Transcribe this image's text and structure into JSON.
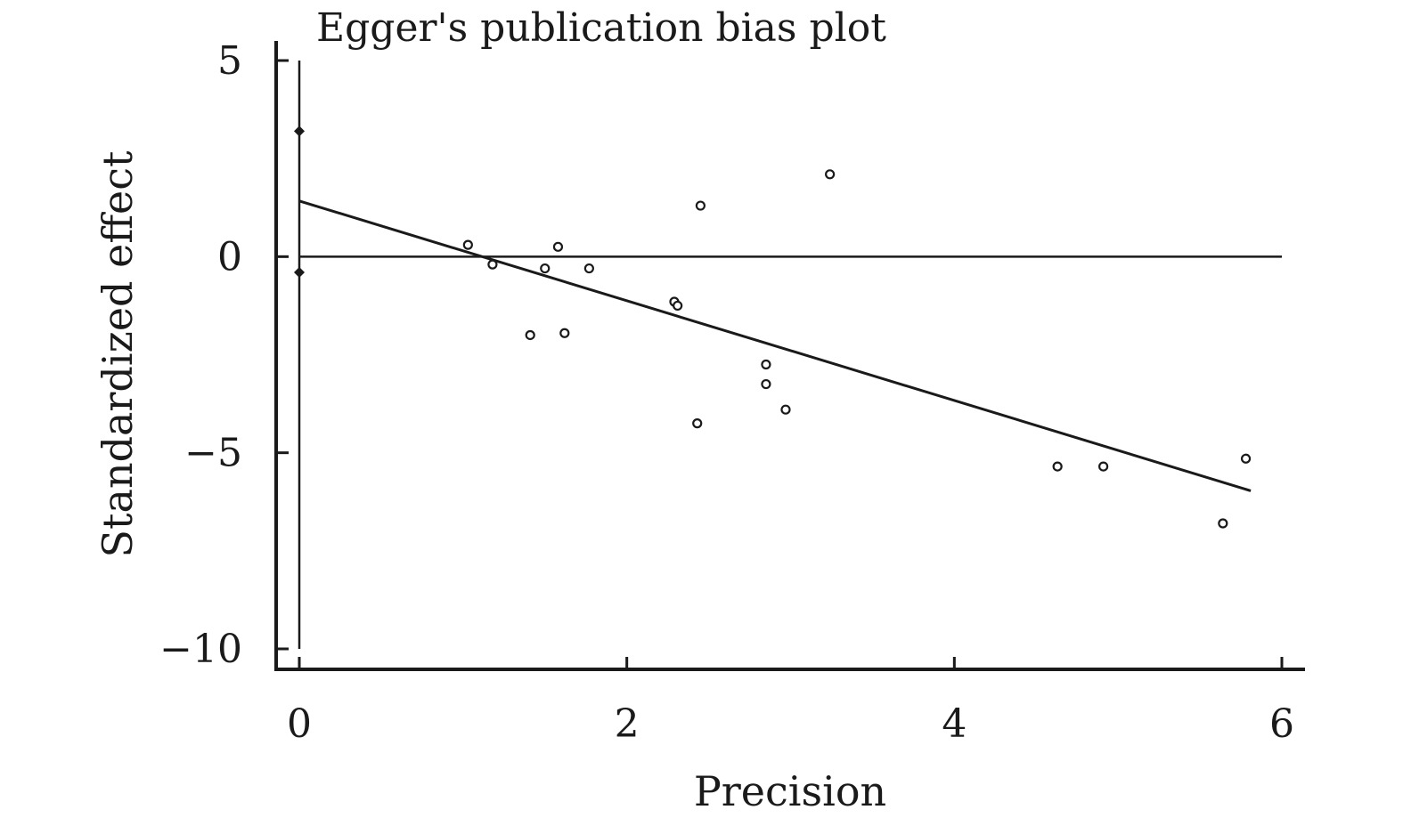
{
  "chart_data": {
    "type": "scatter",
    "title": "Egger's publication bias plot",
    "xlabel": "Precision",
    "ylabel": "Standardized effect",
    "xlim": [
      0,
      6
    ],
    "ylim": [
      -10,
      5
    ],
    "x_ticks": [
      0,
      2,
      4,
      6
    ],
    "x_tick_labels": [
      "0",
      "2",
      "4",
      "6"
    ],
    "y_ticks": [
      5,
      0,
      -5,
      -10
    ],
    "y_tick_labels": [
      "5",
      "0",
      "−5",
      "−10"
    ],
    "grid": false,
    "points": [
      {
        "x": 1.03,
        "y": 0.3
      },
      {
        "x": 1.18,
        "y": -0.2
      },
      {
        "x": 1.41,
        "y": -2.0
      },
      {
        "x": 1.5,
        "y": -0.3
      },
      {
        "x": 1.58,
        "y": 0.25
      },
      {
        "x": 1.62,
        "y": -1.95
      },
      {
        "x": 1.77,
        "y": -0.3
      },
      {
        "x": 2.29,
        "y": -1.15
      },
      {
        "x": 2.31,
        "y": -1.25
      },
      {
        "x": 2.43,
        "y": -4.25
      },
      {
        "x": 2.45,
        "y": 1.3
      },
      {
        "x": 2.85,
        "y": -2.75
      },
      {
        "x": 2.85,
        "y": -3.25
      },
      {
        "x": 2.97,
        "y": -3.9
      },
      {
        "x": 3.24,
        "y": 2.1
      },
      {
        "x": 4.63,
        "y": -5.35
      },
      {
        "x": 4.91,
        "y": -5.35
      },
      {
        "x": 5.64,
        "y": -6.8
      },
      {
        "x": 5.78,
        "y": -5.15
      }
    ],
    "regression_line": {
      "x": [
        0,
        5.81
      ],
      "y": [
        1.42,
        -5.97
      ]
    },
    "reference_line_y": 0,
    "intercept_markers": [
      {
        "x": 0,
        "y": 3.2
      },
      {
        "x": 0,
        "y": -0.4
      }
    ],
    "intercept_ci_line": {
      "x": 0,
      "y": [
        5,
        -10
      ]
    }
  }
}
